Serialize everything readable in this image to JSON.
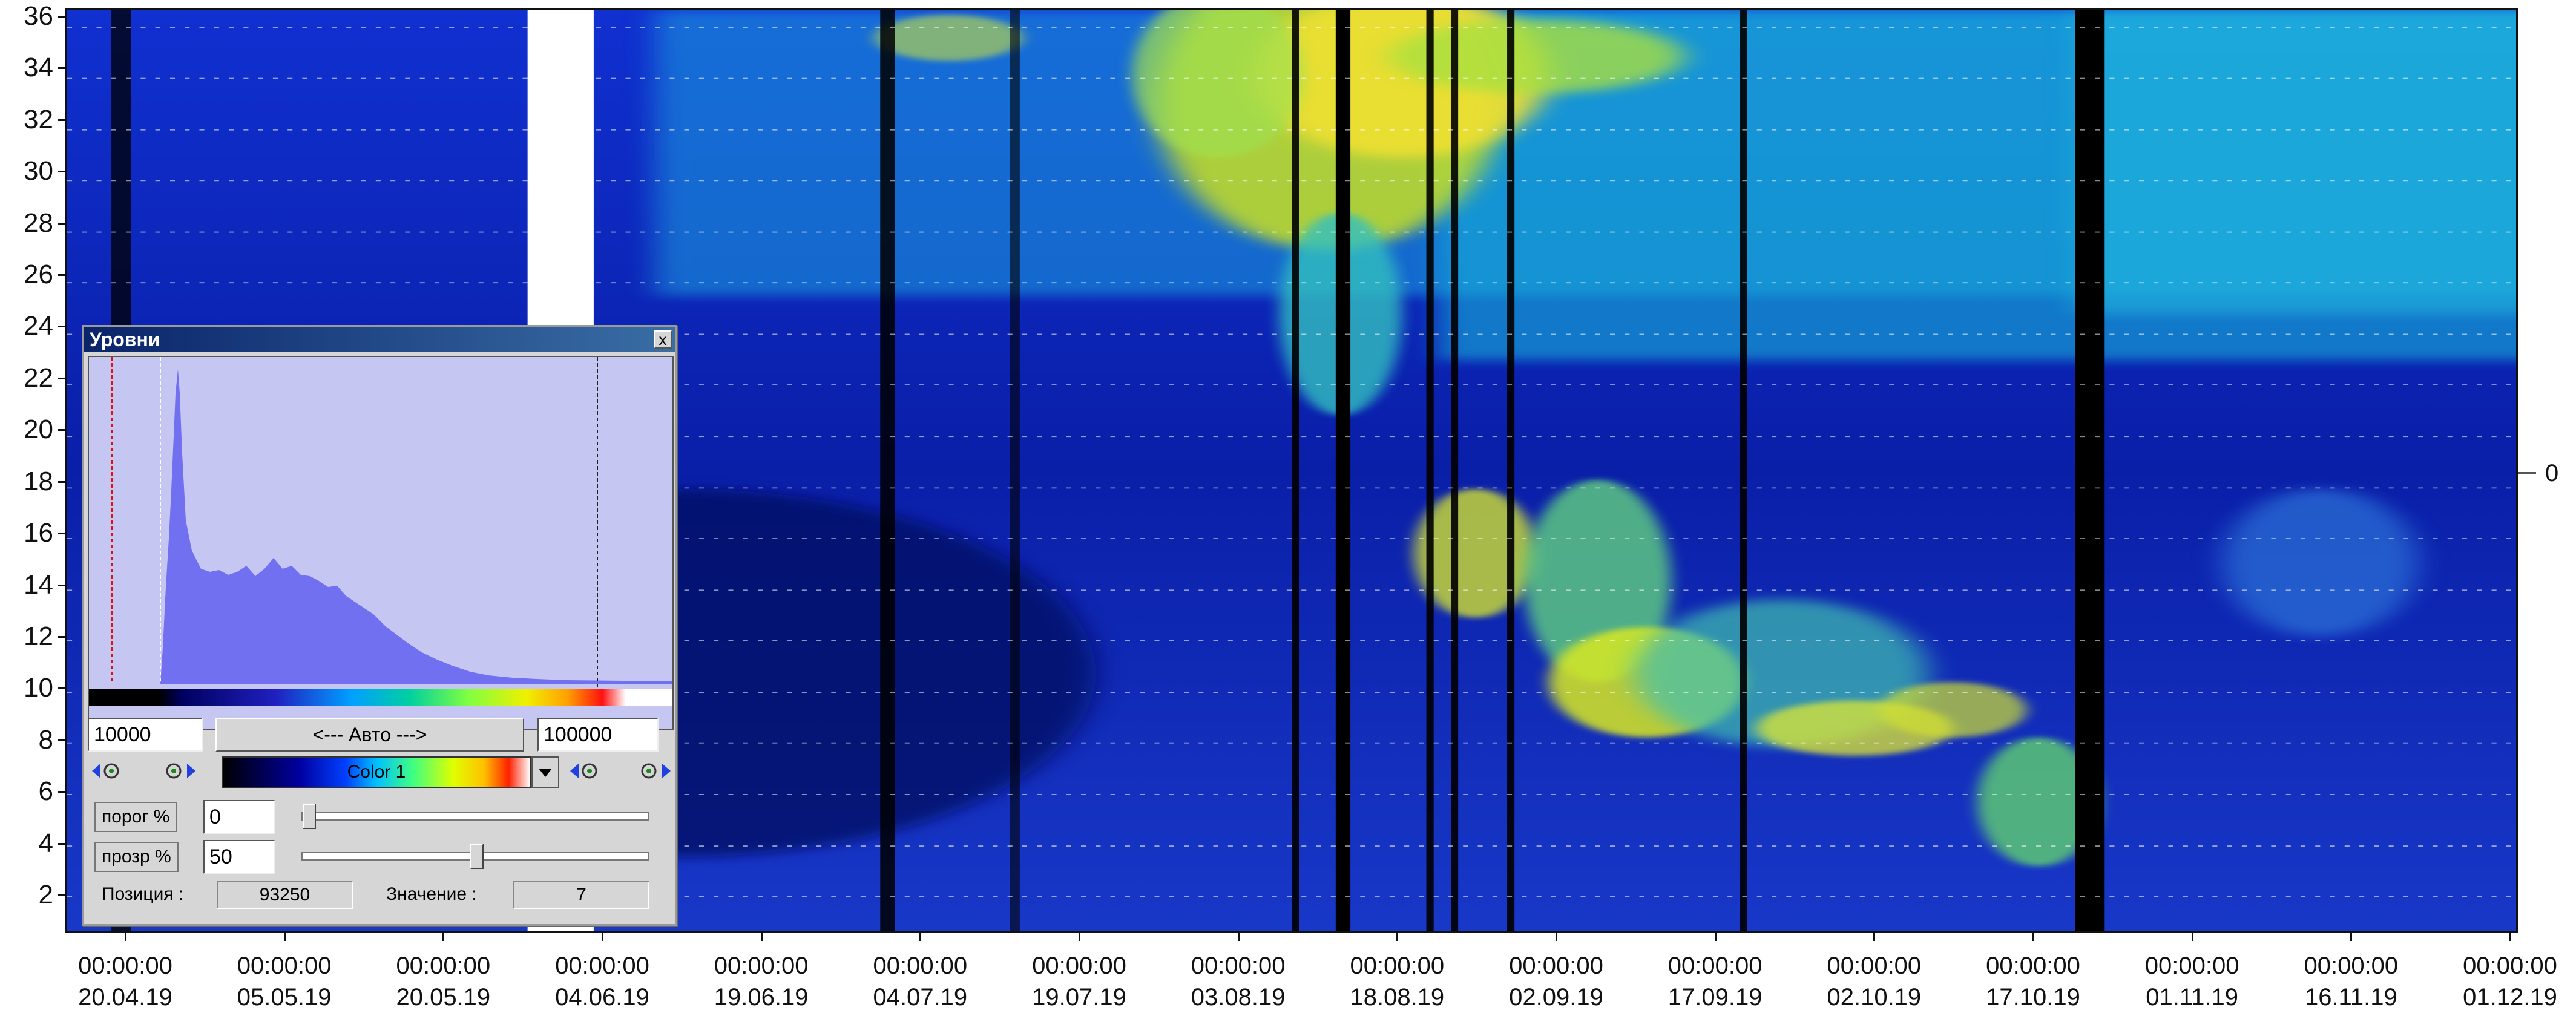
{
  "plot": {
    "y_ticks": [
      "2",
      "4",
      "6",
      "8",
      "10",
      "12",
      "14",
      "16",
      "18",
      "20",
      "22",
      "24",
      "26",
      "28",
      "30",
      "32",
      "34",
      "36"
    ],
    "x_ticks": [
      {
        "time": "00:00:00",
        "date": "20.04.19"
      },
      {
        "time": "00:00:00",
        "date": "05.05.19"
      },
      {
        "time": "00:00:00",
        "date": "20.05.19"
      },
      {
        "time": "00:00:00",
        "date": "04.06.19"
      },
      {
        "time": "00:00:00",
        "date": "19.06.19"
      },
      {
        "time": "00:00:00",
        "date": "04.07.19"
      },
      {
        "time": "00:00:00",
        "date": "19.07.19"
      },
      {
        "time": "00:00:00",
        "date": "03.08.19"
      },
      {
        "time": "00:00:00",
        "date": "18.08.19"
      },
      {
        "time": "00:00:00",
        "date": "02.09.19"
      },
      {
        "time": "00:00:00",
        "date": "17.09.19"
      },
      {
        "time": "00:00:00",
        "date": "02.10.19"
      },
      {
        "time": "00:00:00",
        "date": "17.10.19"
      },
      {
        "time": "00:00:00",
        "date": "01.11.19"
      },
      {
        "time": "00:00:00",
        "date": "16.11.19"
      },
      {
        "time": "00:00:00",
        "date": "01.12.19"
      }
    ],
    "right_label": "0"
  },
  "levels_dialog": {
    "title": "Уровни",
    "close_label": "x",
    "min_value": "10000",
    "auto_label": "<---  Авто  --->",
    "max_value": "100000",
    "palette_name": "Color 1",
    "threshold_label": "порог %",
    "threshold_value": "0",
    "threshold_level": 0,
    "transparency_label": "прозр %",
    "transparency_value": "50",
    "transparency_level": 50,
    "position_label": "Позиция :",
    "position_value": "93250",
    "value_label": "Значение :",
    "value_value": "7"
  },
  "colors": {
    "plot_background": "#1a2ec8",
    "histogram_fill": "#7070f0",
    "histogram_background": "#c6c6f2"
  }
}
